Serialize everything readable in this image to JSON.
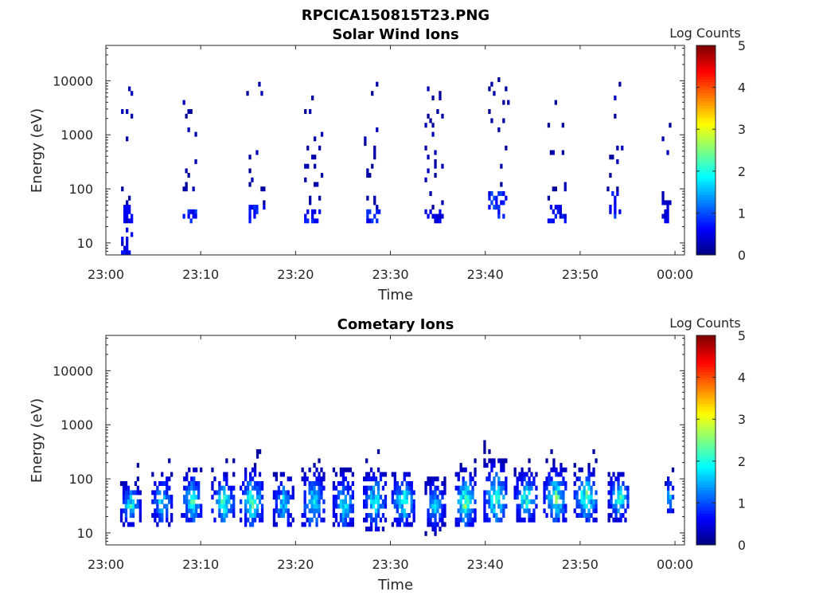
{
  "figure": {
    "title": "RPCICA150815T23.PNG"
  },
  "colormap": {
    "name": "jet",
    "stops": [
      "#00007f",
      "#0000ff",
      "#007fff",
      "#00ffff",
      "#7fff7f",
      "#ffff00",
      "#ff7f00",
      "#ff0000",
      "#7f0000"
    ]
  },
  "chart_data": [
    {
      "type": "heatmap",
      "title": "Solar Wind Ions",
      "xlabel": "Time",
      "ylabel": "Energy (eV)",
      "x_ticks": [
        "23:00",
        "23:10",
        "23:20",
        "23:30",
        "23:40",
        "23:50",
        "00:00"
      ],
      "x_tick_minutes": [
        0,
        10,
        20,
        30,
        40,
        50,
        60
      ],
      "xlim_minutes": [
        0,
        61
      ],
      "y_scale": "log",
      "y_ticks": [
        "10",
        "100",
        "1000",
        "10000"
      ],
      "y_tick_values": [
        10,
        100,
        1000,
        10000
      ],
      "ylim": [
        6,
        45000
      ],
      "colorbar": {
        "label": "Log Counts",
        "ticks": [
          "0",
          "1",
          "2",
          "3",
          "4",
          "5"
        ],
        "range": [
          0,
          5
        ]
      },
      "bursts": [
        {
          "t": 2.2,
          "width": 1.2,
          "core_emin": 6,
          "core_emax": 45,
          "core_logc": 0.5,
          "sparse_emax": 8000
        },
        {
          "t": 8.8,
          "width": 1.4,
          "core_emin": 20,
          "core_emax": 45,
          "core_logc": 0.7,
          "sparse_emax": 6000
        },
        {
          "t": 15.7,
          "width": 1.8,
          "core_emin": 20,
          "core_emax": 45,
          "core_logc": 0.7,
          "sparse_emax": 9000
        },
        {
          "t": 21.8,
          "width": 1.8,
          "core_emin": 20,
          "core_emax": 40,
          "core_logc": 0.6,
          "sparse_emax": 5000
        },
        {
          "t": 28.0,
          "width": 1.6,
          "core_emin": 20,
          "core_emax": 40,
          "core_logc": 0.6,
          "sparse_emax": 9000
        },
        {
          "t": 34.5,
          "width": 1.8,
          "core_emin": 20,
          "core_emax": 35,
          "core_logc": 0.5,
          "sparse_emax": 9000
        },
        {
          "t": 41.3,
          "width": 2.0,
          "core_emin": 25,
          "core_emax": 90,
          "core_logc": 0.7,
          "sparse_emax": 10000
        },
        {
          "t": 47.3,
          "width": 2.0,
          "core_emin": 20,
          "core_emax": 45,
          "core_logc": 0.6,
          "sparse_emax": 8000
        },
        {
          "t": 53.6,
          "width": 1.6,
          "core_emin": 25,
          "core_emax": 90,
          "core_logc": 0.7,
          "sparse_emax": 9000
        },
        {
          "t": 59.0,
          "width": 0.8,
          "core_emin": 20,
          "core_emax": 60,
          "core_logc": 0.4,
          "sparse_emax": 7000
        }
      ]
    },
    {
      "type": "heatmap",
      "title": "Cometary Ions",
      "xlabel": "Time",
      "ylabel": "Energy (eV)",
      "x_ticks": [
        "23:00",
        "23:10",
        "23:20",
        "23:30",
        "23:40",
        "23:50",
        "00:00"
      ],
      "x_tick_minutes": [
        0,
        10,
        20,
        30,
        40,
        50,
        60
      ],
      "xlim_minutes": [
        0,
        61
      ],
      "y_scale": "log",
      "y_ticks": [
        "10",
        "100",
        "1000",
        "10000"
      ],
      "y_tick_values": [
        10,
        100,
        1000,
        10000
      ],
      "ylim": [
        6,
        45000
      ],
      "colorbar": {
        "label": "Log Counts",
        "ticks": [
          "0",
          "1",
          "2",
          "3",
          "4",
          "5"
        ],
        "range": [
          0,
          5
        ]
      },
      "bursts": [
        {
          "t": 2.5,
          "width": 2.0,
          "emin": 12,
          "emax": 80,
          "peak_e": 30,
          "peak_logc": 2.0
        },
        {
          "t": 5.8,
          "width": 2.0,
          "emin": 12,
          "emax": 120,
          "peak_e": 35,
          "peak_logc": 1.9
        },
        {
          "t": 9.0,
          "width": 2.2,
          "emin": 14,
          "emax": 140,
          "peak_e": 35,
          "peak_logc": 2.1
        },
        {
          "t": 12.3,
          "width": 2.4,
          "emin": 14,
          "emax": 120,
          "peak_e": 32,
          "peak_logc": 2.2
        },
        {
          "t": 15.3,
          "width": 2.4,
          "emin": 12,
          "emax": 160,
          "peak_e": 35,
          "peak_logc": 2.3
        },
        {
          "t": 18.6,
          "width": 2.0,
          "emin": 12,
          "emax": 120,
          "peak_e": 32,
          "peak_logc": 1.8
        },
        {
          "t": 21.8,
          "width": 2.4,
          "emin": 12,
          "emax": 150,
          "peak_e": 32,
          "peak_logc": 2.0
        },
        {
          "t": 25.0,
          "width": 2.2,
          "emin": 12,
          "emax": 140,
          "peak_e": 32,
          "peak_logc": 1.9
        },
        {
          "t": 28.3,
          "width": 2.4,
          "emin": 10,
          "emax": 160,
          "peak_e": 35,
          "peak_logc": 2.0
        },
        {
          "t": 31.3,
          "width": 2.4,
          "emin": 12,
          "emax": 130,
          "peak_e": 35,
          "peak_logc": 2.2
        },
        {
          "t": 34.6,
          "width": 2.0,
          "emin": 8,
          "emax": 100,
          "peak_e": 30,
          "peak_logc": 1.8
        },
        {
          "t": 37.8,
          "width": 2.0,
          "emin": 12,
          "emax": 140,
          "peak_e": 35,
          "peak_logc": 2.6
        },
        {
          "t": 41.0,
          "width": 2.4,
          "emin": 14,
          "emax": 220,
          "peak_e": 40,
          "peak_logc": 2.3
        },
        {
          "t": 44.2,
          "width": 2.4,
          "emin": 14,
          "emax": 140,
          "peak_e": 40,
          "peak_logc": 2.1
        },
        {
          "t": 47.3,
          "width": 2.4,
          "emin": 14,
          "emax": 170,
          "peak_e": 40,
          "peak_logc": 2.4
        },
        {
          "t": 50.5,
          "width": 2.4,
          "emin": 14,
          "emax": 150,
          "peak_e": 40,
          "peak_logc": 2.5
        },
        {
          "t": 54.0,
          "width": 2.2,
          "emin": 14,
          "emax": 120,
          "peak_e": 40,
          "peak_logc": 2.2
        },
        {
          "t": 59.3,
          "width": 0.8,
          "emin": 20,
          "emax": 100,
          "peak_e": 40,
          "peak_logc": 2.0
        }
      ]
    }
  ]
}
